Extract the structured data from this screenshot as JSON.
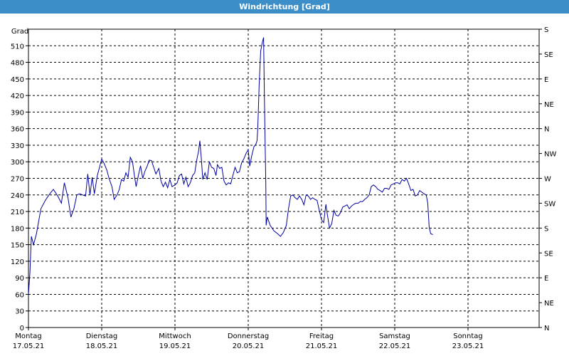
{
  "window": {
    "title": "Windrichtung [Grad]"
  },
  "chart_data": {
    "type": "line",
    "title": "Windrichtung [Grad]",
    "ylabel": "Grad",
    "ylim": [
      0,
      540
    ],
    "y_ticks": [
      0,
      30,
      60,
      90,
      120,
      150,
      180,
      210,
      240,
      270,
      300,
      330,
      360,
      390,
      420,
      450,
      480,
      510
    ],
    "right_axis_labels": [
      "N",
      "NE",
      "E",
      "SE",
      "S",
      "SW",
      "W",
      "NW",
      "N",
      "NE",
      "E",
      "SE",
      "S"
    ],
    "x_ticks": [
      {
        "day": "Montag",
        "date": "17.05.21"
      },
      {
        "day": "Dienstag",
        "date": "18.05.21"
      },
      {
        "day": "Mittwoch",
        "date": "19.05.21"
      },
      {
        "day": "Donnerstag",
        "date": "20.05.21"
      },
      {
        "day": "Freitag",
        "date": "21.05.21"
      },
      {
        "day": "Samstag",
        "date": "22.05.21"
      },
      {
        "day": "Sonntag",
        "date": "23.05.21"
      }
    ],
    "grid": true,
    "line_color": "#0000a0",
    "series": [
      {
        "points": [
          [
            0,
            60
          ],
          [
            0.02,
            100
          ],
          [
            0.04,
            165
          ],
          [
            0.07,
            150
          ],
          [
            0.11,
            170
          ],
          [
            0.17,
            215
          ],
          [
            0.23,
            230
          ],
          [
            0.28,
            240
          ],
          [
            0.34,
            250
          ],
          [
            0.4,
            238
          ],
          [
            0.45,
            225
          ],
          [
            0.49,
            262
          ],
          [
            0.54,
            235
          ],
          [
            0.58,
            200
          ],
          [
            0.62,
            215
          ],
          [
            0.66,
            240
          ],
          [
            0.7,
            242
          ],
          [
            0.74,
            240
          ],
          [
            0.78,
            238
          ],
          [
            0.81,
            278
          ],
          [
            0.84,
            240
          ],
          [
            0.87,
            272
          ],
          [
            0.9,
            242
          ],
          [
            0.94,
            275
          ],
          [
            0.97,
            290
          ],
          [
            1.0,
            305
          ],
          [
            1.03,
            298
          ],
          [
            1.07,
            285
          ],
          [
            1.1,
            270
          ],
          [
            1.14,
            255
          ],
          [
            1.17,
            232
          ],
          [
            1.21,
            240
          ],
          [
            1.24,
            250
          ],
          [
            1.27,
            268
          ],
          [
            1.3,
            265
          ],
          [
            1.33,
            280
          ],
          [
            1.36,
            272
          ],
          [
            1.39,
            308
          ],
          [
            1.42,
            300
          ],
          [
            1.45,
            272
          ],
          [
            1.47,
            255
          ],
          [
            1.5,
            275
          ],
          [
            1.53,
            293
          ],
          [
            1.56,
            270
          ],
          [
            1.59,
            283
          ],
          [
            1.62,
            292
          ],
          [
            1.65,
            303
          ],
          [
            1.68,
            302
          ],
          [
            1.71,
            290
          ],
          [
            1.74,
            278
          ],
          [
            1.78,
            288
          ],
          [
            1.81,
            265
          ],
          [
            1.84,
            255
          ],
          [
            1.87,
            263
          ],
          [
            1.9,
            253
          ],
          [
            1.93,
            268
          ],
          [
            1.96,
            255
          ],
          [
            2.0,
            258
          ],
          [
            2.03,
            262
          ],
          [
            2.06,
            275
          ],
          [
            2.09,
            278
          ],
          [
            2.12,
            260
          ],
          [
            2.15,
            272
          ],
          [
            2.18,
            255
          ],
          [
            2.21,
            262
          ],
          [
            2.24,
            275
          ],
          [
            2.27,
            280
          ],
          [
            2.3,
            305
          ],
          [
            2.32,
            318
          ],
          [
            2.34,
            338
          ],
          [
            2.36,
            305
          ],
          [
            2.38,
            268
          ],
          [
            2.41,
            280
          ],
          [
            2.44,
            268
          ],
          [
            2.47,
            300
          ],
          [
            2.5,
            290
          ],
          [
            2.53,
            288
          ],
          [
            2.56,
            275
          ],
          [
            2.58,
            295
          ],
          [
            2.61,
            288
          ],
          [
            2.64,
            290
          ],
          [
            2.67,
            265
          ],
          [
            2.7,
            258
          ],
          [
            2.73,
            262
          ],
          [
            2.76,
            260
          ],
          [
            2.79,
            275
          ],
          [
            2.82,
            290
          ],
          [
            2.85,
            280
          ],
          [
            2.88,
            282
          ],
          [
            2.91,
            298
          ],
          [
            2.94,
            305
          ],
          [
            2.97,
            315
          ],
          [
            3.0,
            322
          ],
          [
            3.02,
            292
          ],
          [
            3.05,
            312
          ],
          [
            3.08,
            328
          ],
          [
            3.1,
            330
          ],
          [
            3.12,
            338
          ],
          [
            3.13,
            360
          ],
          [
            3.15,
            440
          ],
          [
            3.17,
            500
          ],
          [
            3.19,
            515
          ],
          [
            3.21,
            525
          ],
          [
            3.22,
            420
          ],
          [
            3.23,
            340
          ],
          [
            3.24,
            260
          ],
          [
            3.245,
            185
          ],
          [
            3.26,
            200
          ],
          [
            3.3,
            185
          ],
          [
            3.35,
            175
          ],
          [
            3.4,
            170
          ],
          [
            3.44,
            165
          ],
          [
            3.48,
            172
          ],
          [
            3.52,
            185
          ],
          [
            3.55,
            215
          ],
          [
            3.58,
            238
          ],
          [
            3.61,
            240
          ],
          [
            3.64,
            235
          ],
          [
            3.67,
            232
          ],
          [
            3.7,
            238
          ],
          [
            3.73,
            232
          ],
          [
            3.76,
            222
          ],
          [
            3.79,
            240
          ],
          [
            3.82,
            238
          ],
          [
            3.85,
            232
          ],
          [
            3.88,
            235
          ],
          [
            3.91,
            232
          ],
          [
            3.94,
            230
          ],
          [
            3.97,
            212
          ],
          [
            4.0,
            195
          ],
          [
            4.03,
            190
          ],
          [
            4.06,
            223
          ],
          [
            4.08,
            205
          ],
          [
            4.11,
            180
          ],
          [
            4.14,
            188
          ],
          [
            4.17,
            212
          ],
          [
            4.2,
            203
          ],
          [
            4.23,
            202
          ],
          [
            4.26,
            208
          ],
          [
            4.29,
            218
          ],
          [
            4.32,
            220
          ],
          [
            4.35,
            222
          ],
          [
            4.38,
            215
          ],
          [
            4.41,
            220
          ],
          [
            4.44,
            223
          ],
          [
            4.47,
            225
          ],
          [
            4.5,
            225
          ],
          [
            4.53,
            228
          ],
          [
            4.56,
            228
          ],
          [
            4.59,
            232
          ],
          [
            4.62,
            235
          ],
          [
            4.65,
            240
          ],
          [
            4.68,
            255
          ],
          [
            4.71,
            258
          ],
          [
            4.74,
            255
          ],
          [
            4.77,
            250
          ],
          [
            4.8,
            248
          ],
          [
            4.83,
            245
          ],
          [
            4.86,
            252
          ],
          [
            4.89,
            252
          ],
          [
            4.92,
            250
          ],
          [
            4.95,
            258
          ],
          [
            4.98,
            260
          ],
          [
            5.01,
            262
          ],
          [
            5.04,
            262
          ],
          [
            5.07,
            260
          ],
          [
            5.1,
            268
          ],
          [
            5.13,
            265
          ],
          [
            5.16,
            270
          ],
          [
            5.19,
            260
          ],
          [
            5.22,
            248
          ],
          [
            5.25,
            250
          ],
          [
            5.28,
            238
          ],
          [
            5.31,
            240
          ],
          [
            5.34,
            248
          ],
          [
            5.37,
            245
          ],
          [
            5.4,
            242
          ],
          [
            5.43,
            240
          ],
          [
            5.45,
            225
          ],
          [
            5.47,
            182
          ],
          [
            5.49,
            170
          ],
          [
            5.52,
            168
          ]
        ]
      }
    ]
  }
}
